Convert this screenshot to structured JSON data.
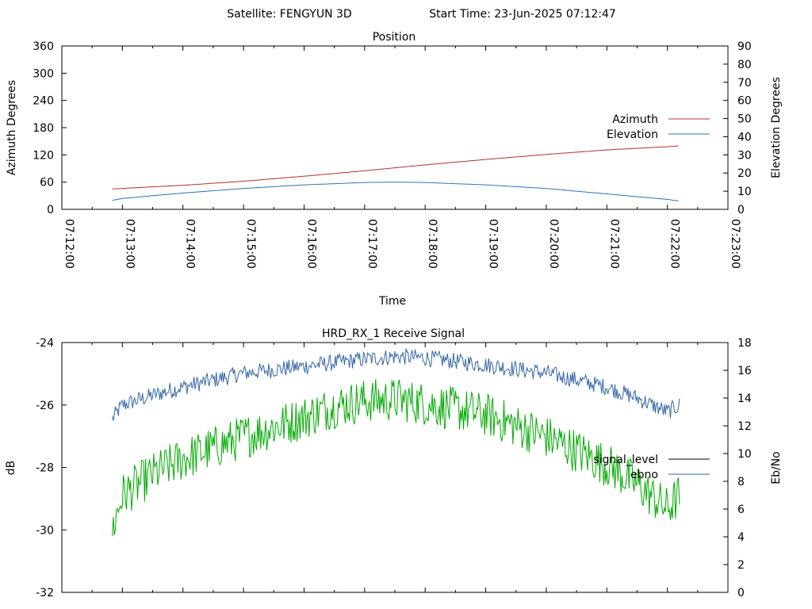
{
  "header": {
    "satellite": "Satellite: FENGYUN 3D",
    "start_time": "Start Time: 23-Jun-2025 07:12:47"
  },
  "chart_data": [
    {
      "type": "line",
      "title": "Position",
      "xlabel": "Time",
      "ylabel": "Azimuth Degrees",
      "y2label": "Elevation Degrees",
      "xlim": [
        "07:12:00",
        "07:23:00"
      ],
      "ylim": [
        0,
        360
      ],
      "y2lim": [
        0,
        90
      ],
      "x_ticks": [
        "07:12:00",
        "07:13:00",
        "07:14:00",
        "07:15:00",
        "07:16:00",
        "07:17:00",
        "07:18:00",
        "07:19:00",
        "07:20:00",
        "07:21:00",
        "07:22:00",
        "07:23:00"
      ],
      "y_ticks": [
        "0",
        "60",
        "120",
        "180",
        "240",
        "300",
        "360"
      ],
      "y2_ticks": [
        "0",
        "10",
        "20",
        "30",
        "40",
        "50",
        "60",
        "70",
        "80",
        "90"
      ],
      "legend_position": "right",
      "series": [
        {
          "name": "Azimuth",
          "axis": "left",
          "color": "#b03030",
          "x": [
            "07:12:50",
            "07:13:00",
            "07:14:00",
            "07:15:00",
            "07:16:00",
            "07:17:00",
            "07:18:00",
            "07:19:00",
            "07:20:00",
            "07:21:00",
            "07:22:00",
            "07:22:12"
          ],
          "values": [
            45,
            46,
            53,
            62,
            73,
            85,
            98,
            110,
            121,
            131,
            138,
            140
          ]
        },
        {
          "name": "Elevation",
          "axis": "right",
          "color": "#3070b0",
          "x": [
            "07:12:50",
            "07:13:00",
            "07:14:00",
            "07:15:00",
            "07:16:00",
            "07:17:00",
            "07:17:30",
            "07:18:00",
            "07:19:00",
            "07:20:00",
            "07:21:00",
            "07:22:00",
            "07:22:12"
          ],
          "values": [
            5,
            6,
            9,
            11.5,
            13.5,
            14.8,
            15,
            14.8,
            13.5,
            11.5,
            8.5,
            5.5,
            4.5
          ]
        }
      ]
    },
    {
      "type": "line",
      "title": "HRD_RX_1 Receive Signal",
      "xlabel": "",
      "ylabel": "dB",
      "y2label": "Eb/No",
      "xlim": [
        "07:12:00",
        "07:23:00"
      ],
      "ylim": [
        -32,
        -24
      ],
      "y2lim": [
        0,
        18
      ],
      "y_ticks": [
        "-24",
        "-26",
        "-28",
        "-30",
        "-32"
      ],
      "y2_ticks": [
        "0",
        "2",
        "4",
        "6",
        "8",
        "10",
        "12",
        "14",
        "16",
        "18"
      ],
      "legend_position": "right",
      "series": [
        {
          "name": "signal_level",
          "axis": "left",
          "color": "#000000",
          "x": [],
          "values": []
        },
        {
          "name": "ebno",
          "axis": "right",
          "color": "#3465a4",
          "x": [
            "07:12:50",
            "07:13:00",
            "07:13:30",
            "07:14:00",
            "07:15:00",
            "07:16:00",
            "07:17:00",
            "07:17:30",
            "07:18:00",
            "07:19:00",
            "07:20:00",
            "07:21:00",
            "07:21:30",
            "07:22:00",
            "07:22:12"
          ],
          "values": [
            12.5,
            13.5,
            14.2,
            14.8,
            15.8,
            16.3,
            16.8,
            17.0,
            16.9,
            16.4,
            15.8,
            14.8,
            14.0,
            13.0,
            13.5
          ]
        },
        {
          "name": "",
          "axis": "right",
          "color": "#00aa00",
          "x": [
            "07:12:50",
            "07:13:00",
            "07:13:30",
            "07:14:00",
            "07:15:00",
            "07:16:00",
            "07:16:30",
            "07:17:00",
            "07:17:30",
            "07:18:00",
            "07:19:00",
            "07:20:00",
            "07:21:00",
            "07:21:30",
            "07:22:00",
            "07:22:12"
          ],
          "values": [
            4.5,
            7.0,
            8.5,
            9.6,
            11.2,
            12.6,
            13.4,
            13.8,
            13.9,
            13.6,
            12.8,
            11.2,
            9.2,
            7.8,
            6.0,
            7.0
          ]
        }
      ]
    }
  ]
}
